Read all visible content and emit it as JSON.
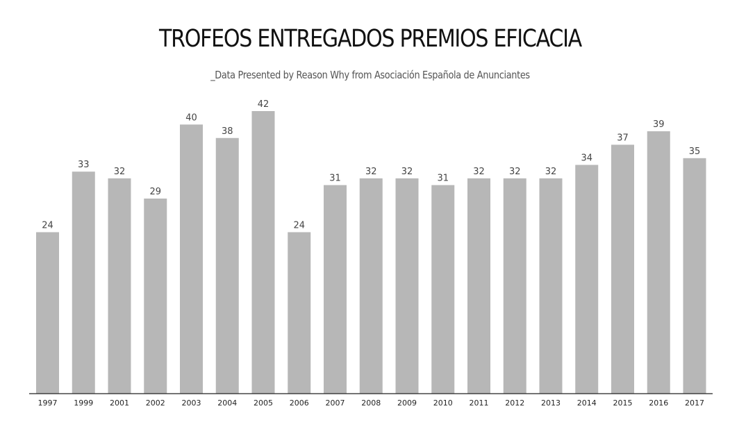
{
  "chart_data": {
    "type": "bar",
    "title": "TROFEOS ENTREGADOS PREMIOS EFICACIA",
    "subtitle": "_Data Presented by Reason Why from Asociación Española de Anunciantes",
    "xlabel": "",
    "ylabel": "",
    "categories": [
      "1997",
      "1999",
      "2001",
      "2002",
      "2003",
      "2004",
      "2005",
      "2006",
      "2007",
      "2008",
      "2009",
      "2010",
      "2011",
      "2012",
      "2013",
      "2014",
      "2015",
      "2016",
      "2017"
    ],
    "values": [
      24,
      33,
      32,
      29,
      40,
      38,
      42,
      24,
      31,
      32,
      32,
      31,
      32,
      32,
      32,
      34,
      37,
      39,
      35
    ],
    "ylim": [
      0,
      42
    ],
    "grid": false,
    "legend": "none",
    "bar_color": "#b7b7b7"
  }
}
